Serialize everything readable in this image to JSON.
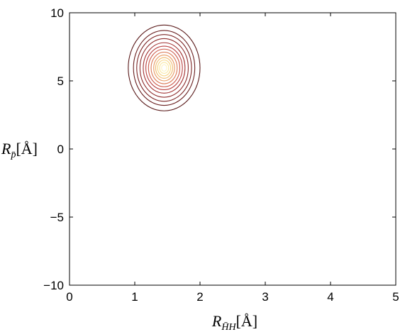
{
  "chart_data": {
    "type": "contour",
    "title": "",
    "xlabel": {
      "symbol": "R",
      "subscript": "H̄H",
      "unit": "[Å]"
    },
    "ylabel": {
      "symbol": "R",
      "subscript": "p̄",
      "unit": "[Å]"
    },
    "xlim": [
      0,
      5
    ],
    "ylim": [
      -10,
      10
    ],
    "xticks": [
      0,
      1,
      2,
      3,
      4,
      5
    ],
    "yticks": [
      -10,
      -5,
      0,
      5,
      10
    ],
    "xtick_labels": [
      "0",
      "1",
      "2",
      "3",
      "4",
      "5"
    ],
    "ytick_labels": [
      "−10",
      "−5",
      "0",
      "5",
      "10"
    ],
    "grid": false,
    "peak": {
      "x": 1.45,
      "y": 5.95
    },
    "contours": [
      {
        "level": 1,
        "rx": 0.55,
        "ry": 3.15,
        "color": "#5a1a1a"
      },
      {
        "level": 2,
        "rx": 0.47,
        "ry": 2.75,
        "color": "#6a2020"
      },
      {
        "level": 3,
        "rx": 0.42,
        "ry": 2.45,
        "color": "#7c2626"
      },
      {
        "level": 4,
        "rx": 0.37,
        "ry": 2.15,
        "color": "#8e2c2c"
      },
      {
        "level": 5,
        "rx": 0.32,
        "ry": 1.85,
        "color": "#a33434"
      },
      {
        "level": 6,
        "rx": 0.28,
        "ry": 1.6,
        "color": "#b84040"
      },
      {
        "level": 7,
        "rx": 0.24,
        "ry": 1.38,
        "color": "#cc5a4a"
      },
      {
        "level": 8,
        "rx": 0.2,
        "ry": 1.16,
        "color": "#dc7a56"
      },
      {
        "level": 9,
        "rx": 0.16,
        "ry": 0.95,
        "color": "#e89a62"
      },
      {
        "level": 10,
        "rx": 0.13,
        "ry": 0.76,
        "color": "#f0bb70"
      },
      {
        "level": 11,
        "rx": 0.1,
        "ry": 0.58,
        "color": "#f6d585"
      },
      {
        "level": 12,
        "rx": 0.07,
        "ry": 0.4,
        "color": "#fae8a0"
      },
      {
        "level": 13,
        "rx": 0.04,
        "ry": 0.24,
        "color": "#fdf4c4"
      }
    ]
  }
}
